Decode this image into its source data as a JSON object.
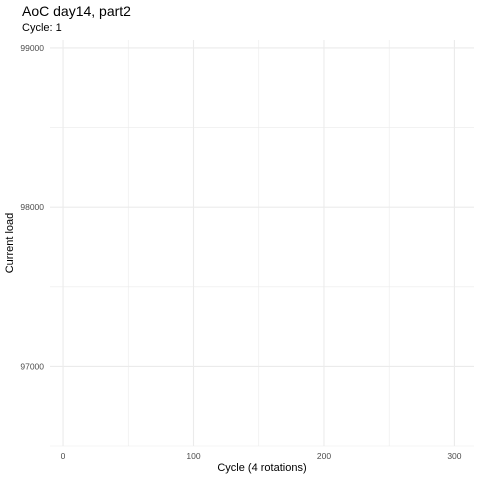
{
  "chart_data": {
    "type": "line",
    "title": "AoC day14, part2",
    "subtitle": "Cycle: 1",
    "xlabel": "Cycle (4 rotations)",
    "ylabel": "Current load",
    "xlim": [
      -10,
      315
    ],
    "ylim": [
      96500,
      99050
    ],
    "x_ticks": [
      0,
      100,
      200,
      300
    ],
    "x_minor_ticks": [
      50,
      150,
      250
    ],
    "y_ticks": [
      97000,
      98000,
      99000
    ],
    "y_minor_ticks": [
      96500,
      97500,
      98500
    ],
    "grid": true,
    "series": [],
    "background": "#ffffff",
    "grid_color": "#ebebeb"
  }
}
